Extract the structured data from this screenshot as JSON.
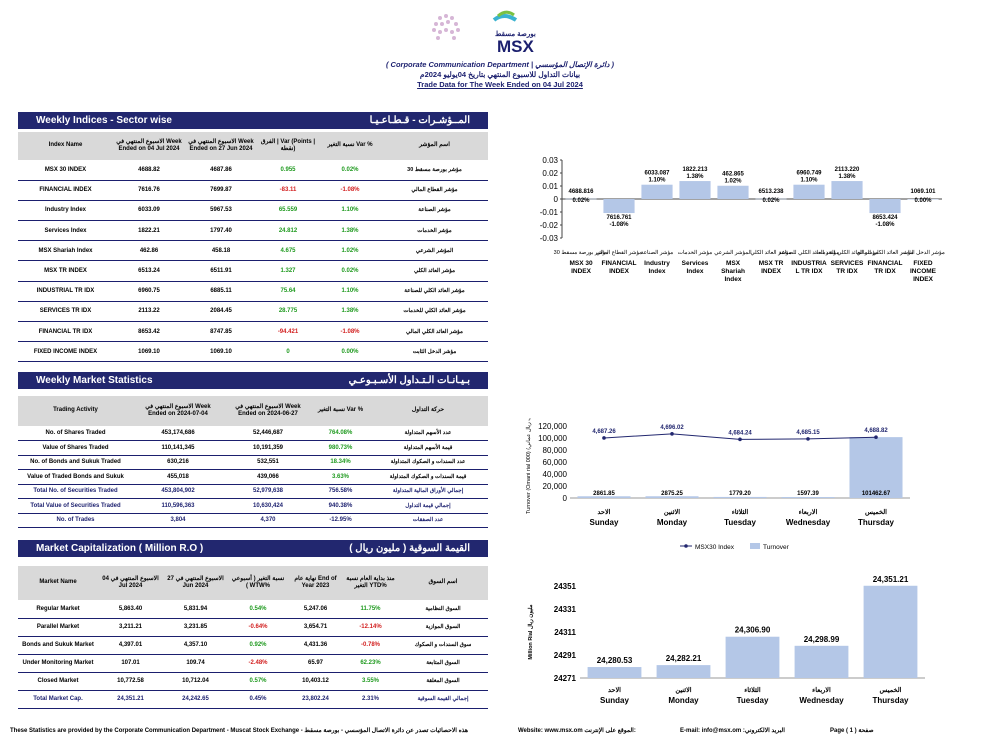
{
  "header": {
    "logo_text": "MSX",
    "logo_ar": "بورصة مسقط",
    "department": "( Corporate Communication Department | دائرة الإتصال المؤسسي )",
    "arabic_title": "بيانات التداول للاسبوع المنتهي بتاريخ 04يوليو 2024م",
    "english_title": "Trade Data for The Week Ended on 04 Jul 2024"
  },
  "indices": {
    "title_en": "Weekly Indices - Sector wise",
    "title_ar": "المــؤشـرات - قـطـاعـيـا",
    "headers": [
      "Index Name",
      "الاسبوع المنتهي في Week Ended on 04 Jul 2024",
      "الاسبوع المنتهي في Week Ended on 27 Jun 2024",
      "الفرق | Var (Points | نقطة)",
      "نسبة التغير Var %",
      "اسم المؤشر"
    ],
    "rows": [
      {
        "name": "MSX 30 INDEX",
        "cur": "4688.82",
        "prev": "4687.86",
        "var": "0.955",
        "pct": "0.02%",
        "ar": "مؤشر بورصة مسقط 30",
        "cls": "pos"
      },
      {
        "name": "FINANCIAL INDEX",
        "cur": "7616.76",
        "prev": "7699.87",
        "var": "-83.11",
        "pct": "-1.08%",
        "ar": "مؤشر القطاع المالي",
        "cls": "neg"
      },
      {
        "name": "Industry Index",
        "cur": "6033.09",
        "prev": "5967.53",
        "var": "65.559",
        "pct": "1.10%",
        "ar": "مؤشر الصناعة",
        "cls": "pos"
      },
      {
        "name": "Services Index",
        "cur": "1822.21",
        "prev": "1797.40",
        "var": "24.812",
        "pct": "1.38%",
        "ar": "مؤشر الخدمات",
        "cls": "pos"
      },
      {
        "name": "MSX Shariah Index",
        "cur": "462.86",
        "prev": "458.18",
        "var": "4.675",
        "pct": "1.02%",
        "ar": "المؤشر الشرعي",
        "cls": "pos"
      },
      {
        "name": "MSX TR INDEX",
        "cur": "6513.24",
        "prev": "6511.91",
        "var": "1.327",
        "pct": "0.02%",
        "ar": "مؤشر العائد الكلي",
        "cls": "pos"
      },
      {
        "name": "INDUSTRIAL TR IDX",
        "cur": "6960.75",
        "prev": "6885.11",
        "var": "75.64",
        "pct": "1.10%",
        "ar": "مؤشر العائد الكلي للصناعة",
        "cls": "pos"
      },
      {
        "name": "SERVICES TR IDX",
        "cur": "2113.22",
        "prev": "2084.45",
        "var": "28.775",
        "pct": "1.38%",
        "ar": "مؤشر العائد الكلي للخدمات",
        "cls": "pos"
      },
      {
        "name": "FINANCIAL TR IDX",
        "cur": "8653.42",
        "prev": "8747.85",
        "var": "-94.421",
        "pct": "-1.08%",
        "ar": "مؤشر العائد الكلي المالي",
        "cls": "neg"
      },
      {
        "name": "FIXED INCOME INDEX",
        "cur": "1069.10",
        "prev": "1069.10",
        "var": "0",
        "pct": "0.00%",
        "ar": "مؤشر الدخل الثابت",
        "cls": "zero"
      }
    ]
  },
  "stats": {
    "title_en": "Weekly Market Statistics",
    "title_ar": "بـيـانـات الـتـداول الأسـبـوعـي",
    "headers": [
      "Trading Activity",
      "الاسبوع المنتهي في Week Ended on 2024-07-04",
      "الاسبوع المنتهي في Week Ended on 2024-06-27",
      "نسبة التغير Var %",
      "حركة التداول"
    ],
    "rows": [
      {
        "name": "No. of Shares Traded",
        "cur": "453,174,686",
        "prev": "52,446,687",
        "pct": "764.08%",
        "ar": "عدد الأسهم المتداولة",
        "cls": "pos",
        "total": false
      },
      {
        "name": "Value of Shares Traded",
        "cur": "110,141,345",
        "prev": "10,191,359",
        "pct": "980.73%",
        "ar": "قيمة الأسهم المتداولة",
        "cls": "pos",
        "total": false
      },
      {
        "name": "No. of Bonds and Sukuk Traded",
        "cur": "630,216",
        "prev": "532,551",
        "pct": "18.34%",
        "ar": "عدد السندات و الصكوك المتداولة",
        "cls": "pos",
        "total": false
      },
      {
        "name": "Value of Traded Bonds and Sukuk",
        "cur": "455,018",
        "prev": "439,066",
        "pct": "3.63%",
        "ar": "قيمة السندات و الصكوك المتداولة",
        "cls": "pos",
        "total": false
      },
      {
        "name": "Total No. of Securities Traded",
        "cur": "453,804,902",
        "prev": "52,979,638",
        "pct": "756.58%",
        "ar": "إجمالي الأوراق المالية المتداولة",
        "cls": "pos",
        "total": true
      },
      {
        "name": "Total Value of Securities Traded",
        "cur": "110,596,363",
        "prev": "10,630,424",
        "pct": "940.38%",
        "ar": "إجمالي قيمة التداول",
        "cls": "pos",
        "total": true
      },
      {
        "name": "No. of Trades",
        "cur": "3,804",
        "prev": "4,370",
        "pct": "-12.95%",
        "ar": "عدد الصفقات",
        "cls": "neg",
        "total": true
      }
    ]
  },
  "cap": {
    "title_en": "Market  Capitalization  ( Million R.O )",
    "title_ar": "القيمة السوقية ( مليون ريال )",
    "headers": [
      "Market Name",
      "الاسبوع المنتهي في 04 Jul 2024",
      "الاسبوع المنتهي في 27 Jun 2024",
      "نسبة التغير ( أسبوعي ) WTW%",
      "نهاية عام End of Year 2023",
      "منذ بداية العام نسبة التغير YTD%",
      "اسم السوق"
    ],
    "rows": [
      {
        "name": "Regular Market",
        "cur": "5,863.40",
        "prev": "5,831.94",
        "wtw": "0.54%",
        "eoy": "5,247.06",
        "ytd": "11.75%",
        "ar": "السوق النظامية",
        "wcls": "pos",
        "ycls": "pos",
        "total": false
      },
      {
        "name": "Parallel Market",
        "cur": "3,211.21",
        "prev": "3,231.85",
        "wtw": "-0.64%",
        "eoy": "3,654.71",
        "ytd": "-12.14%",
        "ar": "السوق الموازية",
        "wcls": "neg",
        "ycls": "neg",
        "total": false
      },
      {
        "name": "Bonds and Sukuk Market",
        "cur": "4,397.01",
        "prev": "4,357.10",
        "wtw": "0.92%",
        "eoy": "4,431.36",
        "ytd": "-0.78%",
        "ar": "سوق السندات و الصكوك",
        "wcls": "pos",
        "ycls": "neg",
        "total": false
      },
      {
        "name": "Under Monitoring Market",
        "cur": "107.01",
        "prev": "109.74",
        "wtw": "-2.48%",
        "eoy": "65.97",
        "ytd": "62.23%",
        "ar": "السوق المتابعة",
        "wcls": "neg",
        "ycls": "pos",
        "total": false
      },
      {
        "name": "Closed Market",
        "cur": "10,772.58",
        "prev": "10,712.04",
        "wtw": "0.57%",
        "eoy": "10,403.12",
        "ytd": "3.55%",
        "ar": "السوق المغلقة",
        "wcls": "pos",
        "ycls": "pos",
        "total": false
      },
      {
        "name": "Total Market Cap.",
        "cur": "24,351.21",
        "prev": "24,242.65",
        "wtw": "0.45%",
        "eoy": "23,802.24",
        "ytd": "2.31%",
        "ar": "إجمالي القيمة السوقية",
        "wcls": "pos",
        "ycls": "pos",
        "total": true
      }
    ]
  },
  "chart_data": [
    {
      "type": "bar",
      "title": "",
      "categories": [
        "مؤشر بورصة مسقط 30 MSX 30 INDEX",
        "مؤشر القطاع المالي FINANCIAL INDEX",
        "مؤشر الصناعة Industry Index",
        "مؤشر الخدمات Services Index",
        "المؤشر الشرعي MSX Shariah Index",
        "مؤشر العائد الكلي MSX TR INDEX",
        "مؤشر العائد الكلي للصناعة INDUSTRIAL TR IDX",
        "مؤشر العائد الكلي للخدمات SERVICES TR IDX",
        "مؤشر العائد الكلي المالي FINANCIAL TR IDX",
        "مؤشر الدخل الثابت FIXED INCOME INDEX"
      ],
      "cat_en": [
        "MSX 30 INDEX",
        "FINANCIAL INDEX",
        "Industry Index",
        "Services Index",
        "MSX Shariah Index",
        "MSX TR INDEX",
        "INDUSTRIA L TR IDX",
        "SERVICES TR IDX",
        "FINANCIAL TR IDX",
        "FIXED INCOME INDEX"
      ],
      "cat_ar": [
        "مؤشر بورصة مسقط 30",
        "مؤشر القطاع المالي",
        "مؤشر الصناعة",
        "مؤشر الخدمات",
        "المؤشر الشرعي",
        "مؤشر العائد الكلي",
        "مؤشر العائد الكلي للصناعة",
        "مؤشر العائد الكلي للخدمات",
        "مؤشر العائد الكلي المالي",
        "مؤشر الدخل الثابت"
      ],
      "values": [
        0.0002,
        -0.0108,
        0.011,
        0.0138,
        0.0102,
        0.0002,
        0.011,
        0.0138,
        -0.0108,
        0.0
      ],
      "labels_value": [
        "4688.816",
        "7616.761",
        "6033.087",
        "1822.213",
        "462.865",
        "6513.238",
        "6960.749",
        "2113.220",
        "8653.424",
        "1069.101"
      ],
      "labels_pct": [
        "0.02%",
        "-1.08%",
        "1.10%",
        "1.38%",
        "1.02%",
        "0.02%",
        "1.10%",
        "1.38%",
        "-1.08%",
        "0.00%"
      ],
      "ylim": [
        -0.03,
        0.03
      ],
      "yticks": [
        "0.03",
        "0.02",
        "0.01",
        "0",
        "-0.01",
        "-0.02",
        "-0.03"
      ],
      "color": "#b4c7e7"
    },
    {
      "type": "bar+line",
      "categories": [
        "الأحد Sunday",
        "الاثنين Monday",
        "الثلاثاء Tuesday",
        "الأربعاء Wednesday",
        "الخميس Thursday"
      ],
      "cat_en": [
        "Sunday",
        "Monday",
        "Tuesday",
        "Wednesday",
        "Thursday"
      ],
      "cat_ar": [
        "الاحد",
        "الاثنين",
        "الثلاثاء",
        "الاربعاء",
        "الخميس"
      ],
      "ylabel": "Turnover (Omani rial 000) (الف ريال عماني)",
      "ylim": [
        0,
        120000
      ],
      "yticks": [
        "120,000",
        "100,000",
        "80,000",
        "60,000",
        "40,000",
        "20,000",
        "0"
      ],
      "series": [
        {
          "name": "MSX30 Index",
          "type": "line",
          "values": [
            4687.26,
            4696.02,
            4684.24,
            4685.15,
            4688.82
          ],
          "labels": [
            "4,687.26",
            "4,696.02",
            "4,684.24",
            "4,685.15",
            "4,688.82"
          ],
          "color": "#22276f"
        },
        {
          "name": "Turnover",
          "type": "bar",
          "values": [
            2861.85,
            2875.25,
            1779.2,
            1597.39,
            101462.67
          ],
          "labels": [
            "2861.85",
            "2875.25",
            "1779.20",
            "1597.39",
            "101462.67"
          ],
          "color": "#b4c7e7"
        }
      ]
    },
    {
      "type": "bar",
      "categories": [
        "الاحد Sunday",
        "الاثنين Monday",
        "الثلاثاء Tuesday",
        "الاربعاء Wednesday",
        "الخميس Thursday"
      ],
      "cat_en": [
        "Sunday",
        "Monday",
        "Tuesday",
        "Wednesday",
        "Thursday"
      ],
      "cat_ar": [
        "الاحد",
        "الاثنين",
        "الثلاثاء",
        "الاربعاء",
        "الخميس"
      ],
      "values": [
        24280.53,
        24282.21,
        24306.9,
        24298.99,
        24351.21
      ],
      "labels": [
        "24,280.53",
        "24,282.21",
        "24,306.90",
        "24,298.99",
        "24,351.21"
      ],
      "ylabel": "Million Rial مليون ريال",
      "ylim": [
        24271,
        24351
      ],
      "yticks": [
        "24351",
        "24331",
        "24311",
        "24291",
        "24271"
      ],
      "color": "#b4c7e7"
    }
  ],
  "footer": {
    "stats_note": "These Statistics are provided by the Corporate Communication Department - Muscat Stock Exchange - هذه الاحصائيات تصدر عن دائرة الاتصال المؤسسي - بورصة مسقط",
    "website": "Website: www.msx.om الموقع على الإنترنت:",
    "email": "E-mail: info@msx.om :البريد الالكتروني",
    "page": "Page ( 1 ) صفحة"
  }
}
